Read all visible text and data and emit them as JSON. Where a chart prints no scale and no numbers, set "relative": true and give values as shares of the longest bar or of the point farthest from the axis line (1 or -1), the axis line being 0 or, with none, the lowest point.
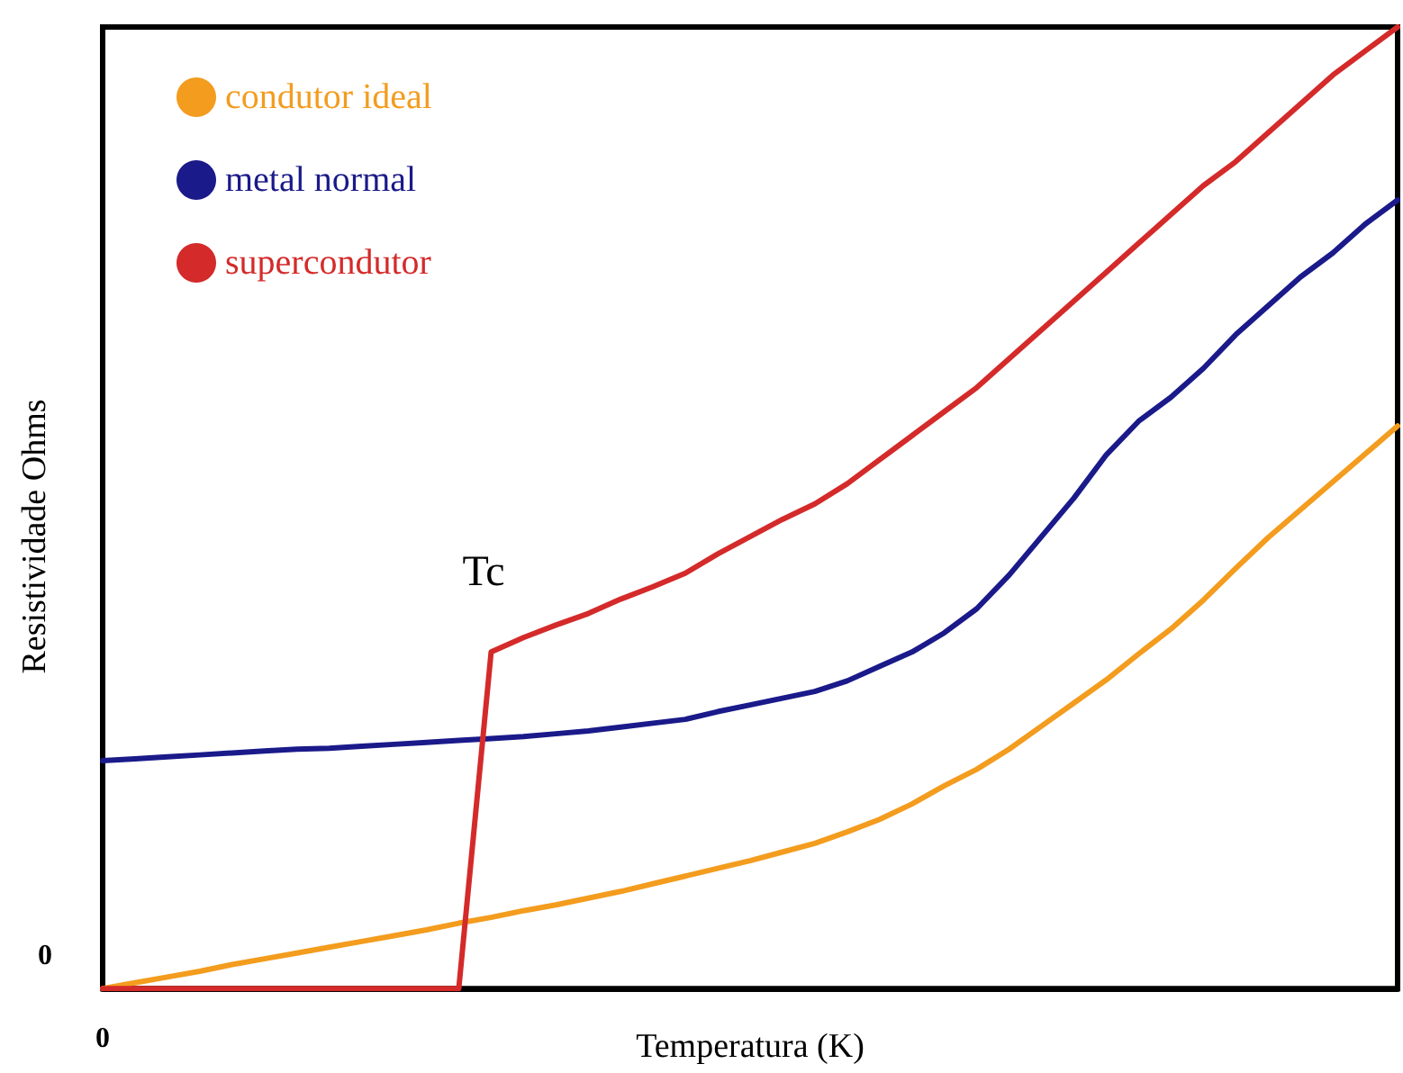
{
  "chart_data": {
    "type": "line",
    "relative": true,
    "xlabel": "Temperatura (K)",
    "ylabel": "Resistividade Ohms",
    "legend": "top left",
    "grid": false,
    "marker": "none",
    "line_style": "solid",
    "categories": [
      null,
      null,
      null,
      null,
      null,
      null,
      null,
      null,
      null,
      null,
      null,
      null,
      null,
      null,
      null,
      null,
      null,
      null,
      null,
      null,
      null,
      null,
      null,
      null,
      null,
      null,
      null,
      null,
      null,
      null,
      null,
      null,
      null,
      null,
      null,
      null,
      null,
      null,
      null,
      null,
      null
    ],
    "series": [
      {
        "name": "condutor ideal",
        "color": "#f39c1e",
        "values": [
          0,
          0.006,
          0.012,
          0.018,
          0.025,
          0.031,
          0.037,
          0.043,
          0.049,
          0.055,
          0.061,
          0.068,
          0.074,
          0.081,
          0.087,
          0.094,
          0.101,
          0.109,
          0.117,
          0.125,
          0.133,
          0.142,
          0.151,
          0.163,
          0.176,
          0.192,
          0.211,
          0.228,
          0.249,
          0.273,
          0.297,
          0.321,
          0.348,
          0.374,
          0.404,
          0.437,
          0.469,
          0.498,
          0.527,
          0.556,
          0.585
        ]
      },
      {
        "name": "metal normal",
        "color": "#1a1a8a",
        "values": [
          0.237,
          0.239,
          0.241,
          0.243,
          0.245,
          0.247,
          0.249,
          0.25,
          0.252,
          0.254,
          0.256,
          0.258,
          0.26,
          0.262,
          0.265,
          0.268,
          0.272,
          0.276,
          0.28,
          0.288,
          0.295,
          0.302,
          0.309,
          0.32,
          0.335,
          0.35,
          0.37,
          0.395,
          0.43,
          0.47,
          0.51,
          0.555,
          0.59,
          0.615,
          0.645,
          0.68,
          0.71,
          0.74,
          0.765,
          0.795,
          0.82
        ]
      },
      {
        "name": "supercondutor",
        "color": "#d42a2a",
        "values": [
          0,
          0,
          0,
          0,
          0,
          0,
          0,
          0,
          0,
          0,
          0,
          0,
          0.35,
          0.365,
          0.378,
          0.39,
          0.405,
          0.418,
          0.432,
          0.452,
          0.47,
          0.488,
          0.504,
          0.525,
          0.55,
          0.575,
          0.6,
          0.625,
          0.655,
          0.685,
          0.715,
          0.745,
          0.775,
          0.805,
          0.835,
          0.86,
          0.89,
          0.92,
          0.95,
          0.975,
          1
        ]
      }
    ],
    "annotations": [
      "0",
      "0",
      {
        "text": "Tc",
        "y": 0.35
      }
    ]
  }
}
